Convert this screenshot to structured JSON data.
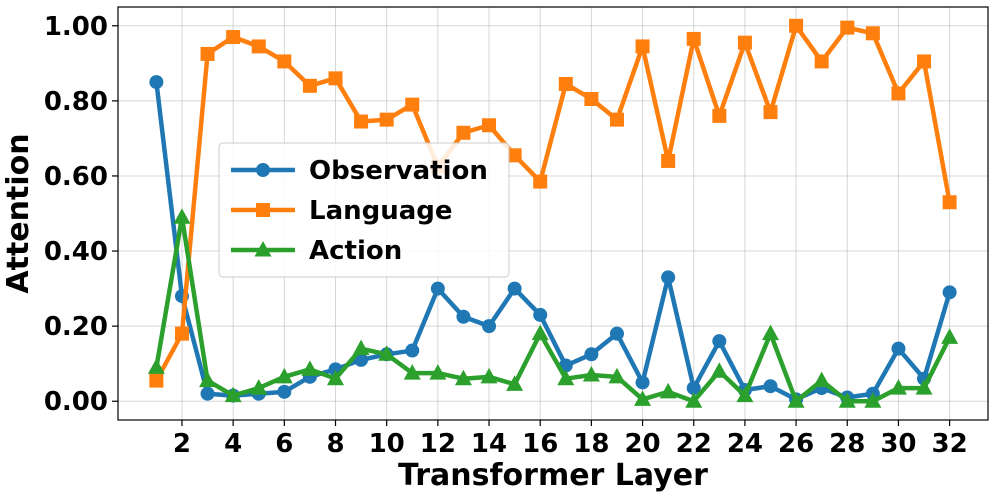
{
  "chart_data": {
    "type": "line",
    "xlabel": "Transformer Layer",
    "ylabel": "Attention",
    "x": [
      1,
      2,
      3,
      4,
      5,
      6,
      7,
      8,
      9,
      10,
      11,
      12,
      13,
      14,
      15,
      16,
      17,
      18,
      19,
      20,
      21,
      22,
      23,
      24,
      25,
      26,
      27,
      28,
      29,
      30,
      31,
      32
    ],
    "xlim": [
      -0.5,
      33.5
    ],
    "ylim": [
      -0.05,
      1.05
    ],
    "xticks": [
      2,
      4,
      6,
      8,
      10,
      12,
      14,
      16,
      18,
      20,
      22,
      24,
      26,
      28,
      30,
      32
    ],
    "xtick_labels": [
      "2",
      "4",
      "6",
      "8",
      "10",
      "12",
      "14",
      "16",
      "18",
      "20",
      "22",
      "24",
      "26",
      "28",
      "30",
      "32"
    ],
    "yticks": [
      0,
      0.2,
      0.4,
      0.6,
      0.8,
      1.0
    ],
    "ytick_labels": [
      "0.00",
      "0.20",
      "0.40",
      "0.60",
      "0.80",
      "1.00"
    ],
    "grid": true,
    "legend_position": "center-left",
    "series": [
      {
        "name": "Observation",
        "color": "#1f77b4",
        "marker": "circle",
        "values": [
          0.85,
          0.28,
          0.02,
          0.015,
          0.02,
          0.025,
          0.065,
          0.085,
          0.11,
          0.125,
          0.135,
          0.3,
          0.225,
          0.2,
          0.3,
          0.23,
          0.095,
          0.125,
          0.18,
          0.05,
          0.33,
          0.035,
          0.16,
          0.03,
          0.04,
          0.005,
          0.035,
          0.01,
          0.02,
          0.14,
          0.06,
          0.29
        ]
      },
      {
        "name": "Language",
        "color": "#ff7f0e",
        "marker": "square",
        "values": [
          0.055,
          0.18,
          0.925,
          0.97,
          0.945,
          0.905,
          0.84,
          0.86,
          0.745,
          0.75,
          0.79,
          0.625,
          0.715,
          0.735,
          0.655,
          0.585,
          0.845,
          0.805,
          0.75,
          0.945,
          0.64,
          0.965,
          0.76,
          0.955,
          0.77,
          1.0,
          0.905,
          0.995,
          0.98,
          0.82,
          0.905,
          0.53
        ]
      },
      {
        "name": "Action",
        "color": "#2ca02c",
        "marker": "triangle",
        "values": [
          0.09,
          0.49,
          0.055,
          0.015,
          0.035,
          0.065,
          0.085,
          0.06,
          0.14,
          0.125,
          0.075,
          0.075,
          0.06,
          0.065,
          0.045,
          0.18,
          0.06,
          0.07,
          0.065,
          0.005,
          0.025,
          0.0,
          0.08,
          0.015,
          0.18,
          0.0,
          0.055,
          0.0,
          0.0,
          0.035,
          0.035,
          0.17
        ]
      }
    ]
  }
}
